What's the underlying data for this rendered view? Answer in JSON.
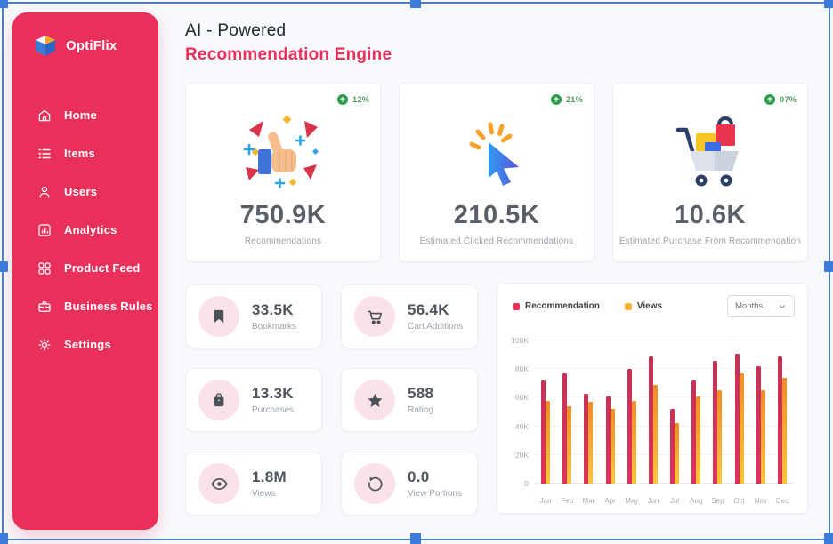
{
  "sidebar": {
    "brand": "OptiFlix",
    "bg_color": "#E8305A",
    "items": [
      {
        "label": "Home",
        "icon": "home-icon"
      },
      {
        "label": "Items",
        "icon": "list-icon"
      },
      {
        "label": "Users",
        "icon": "user-icon"
      },
      {
        "label": "Analytics",
        "icon": "analytics-icon"
      },
      {
        "label": "Product Feed",
        "icon": "grid-icon"
      },
      {
        "label": "Business Rules",
        "icon": "briefcase-icon"
      },
      {
        "label": "Settings",
        "icon": "gear-icon"
      }
    ]
  },
  "header": {
    "title_line1": "AI - Powered",
    "title_line2": "Recommendation Engine",
    "accent_color": "#E8305A"
  },
  "stat_cards": [
    {
      "value": "750.9K",
      "label": "Recommendations",
      "badge": "12%",
      "icon": "thumbs-up-illustration"
    },
    {
      "value": "210.5K",
      "label": "Estimated Clicked Recommendations",
      "badge": "21%",
      "icon": "cursor-click-illustration"
    },
    {
      "value": "10.6K",
      "label": "Estimated Purchase From Recommendation",
      "badge": "07%",
      "icon": "shopping-cart-illustration"
    }
  ],
  "badge_color": "#2E9E4C",
  "mini_cards": [
    {
      "value": "33.5K",
      "label": "Bookmarks",
      "icon": "bookmark-icon"
    },
    {
      "value": "56.4K",
      "label": "Cart Additions",
      "icon": "cart-icon"
    },
    {
      "value": "13.3K",
      "label": "Purchases",
      "icon": "bag-icon"
    },
    {
      "value": "588",
      "label": "Rating",
      "icon": "star-icon"
    },
    {
      "value": "1.8M",
      "label": "Views",
      "icon": "eye-icon"
    },
    {
      "value": "0.0",
      "label": "View Portions",
      "icon": "refresh-icon"
    }
  ],
  "chart": {
    "legend": [
      {
        "label": "Recommendation",
        "color": "#E8305A"
      },
      {
        "label": "Views",
        "color": "#F9B234"
      }
    ],
    "dropdown_value": "Months"
  },
  "chart_data": {
    "type": "bar",
    "title": "",
    "xlabel": "",
    "ylabel": "",
    "categories": [
      "Jan",
      "Feb",
      "Mar",
      "Apr",
      "May",
      "Jun",
      "Jul",
      "Aug",
      "Sep",
      "Oct",
      "Nov",
      "Dec"
    ],
    "series": [
      {
        "name": "Recommendation",
        "color": "#C73156",
        "color_bottom": "#E0315C",
        "values": [
          72000,
          77000,
          63000,
          61000,
          80000,
          89000,
          52000,
          72000,
          86000,
          91000,
          82000,
          89000
        ]
      },
      {
        "name": "Views",
        "color": "#F28B26",
        "color_bottom": "#FCC53E",
        "values": [
          58000,
          54000,
          57000,
          52000,
          58000,
          69000,
          42000,
          61000,
          65000,
          77000,
          65000,
          74000
        ]
      }
    ],
    "ylim": [
      0,
      100000
    ],
    "yticks": [
      "0",
      "20K",
      "40K",
      "60K",
      "80K",
      "100K"
    ],
    "grid": true,
    "legend_position": "top-left"
  }
}
